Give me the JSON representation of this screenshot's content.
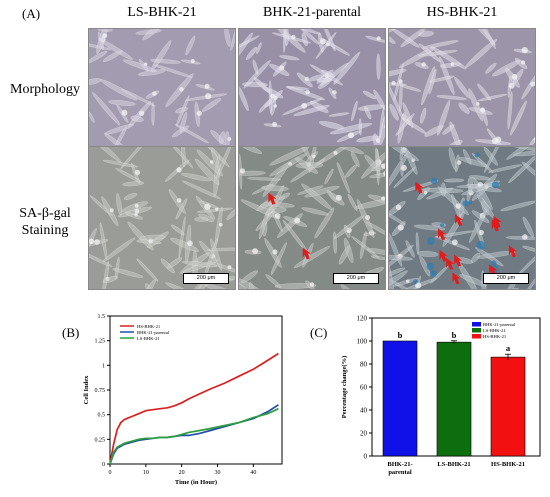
{
  "panel_a": {
    "letter": "(A)",
    "columns": [
      "LS-BHK-21",
      "BHK-21-parental",
      "HS-BHK-21"
    ],
    "rows": [
      {
        "label_lines": [
          "Morphology"
        ]
      },
      {
        "label_lines": [
          "SA-β-gal",
          "Staining"
        ]
      }
    ],
    "scale_bar_label": "200 μm"
  },
  "panel_b": {
    "letter": "(B)"
  },
  "panel_c": {
    "letter": "(C)"
  },
  "chart_data": [
    {
      "type": "line",
      "xlabel": "Time (in Hour)",
      "ylabel": "Cell Index",
      "xlim": [
        0,
        48
      ],
      "ylim": [
        0,
        1.5
      ],
      "xticks": [
        0,
        10,
        20,
        30,
        40
      ],
      "yticks": [
        0,
        0.25,
        0.5,
        0.75,
        1,
        1.25,
        1.5
      ],
      "legend_position": "top-left",
      "series": [
        {
          "name": "HS-BHK-21",
          "color": "#d9201f",
          "x": [
            0,
            1,
            2,
            3,
            4,
            6,
            8,
            10,
            12,
            14,
            16,
            18,
            20,
            22,
            25,
            28,
            32,
            36,
            40,
            44,
            47
          ],
          "y": [
            0,
            0.2,
            0.35,
            0.42,
            0.45,
            0.48,
            0.51,
            0.54,
            0.55,
            0.56,
            0.57,
            0.59,
            0.62,
            0.66,
            0.71,
            0.76,
            0.82,
            0.89,
            0.96,
            1.05,
            1.12
          ]
        },
        {
          "name": "BHK-21-parental",
          "color": "#1f4fa8",
          "x": [
            0,
            1,
            2,
            3,
            4,
            6,
            8,
            10,
            12,
            14,
            16,
            18,
            20,
            22,
            25,
            28,
            32,
            36,
            40,
            44,
            47
          ],
          "y": [
            0,
            0.1,
            0.16,
            0.18,
            0.2,
            0.22,
            0.24,
            0.25,
            0.26,
            0.27,
            0.27,
            0.28,
            0.29,
            0.29,
            0.31,
            0.34,
            0.38,
            0.42,
            0.46,
            0.53,
            0.6
          ]
        },
        {
          "name": "LS-BHK-21",
          "color": "#2e9e3e",
          "x": [
            0,
            1,
            2,
            3,
            4,
            6,
            8,
            10,
            12,
            14,
            16,
            18,
            20,
            22,
            25,
            28,
            32,
            36,
            40,
            44,
            47
          ],
          "y": [
            0,
            0.12,
            0.17,
            0.19,
            0.21,
            0.23,
            0.25,
            0.26,
            0.26,
            0.27,
            0.27,
            0.28,
            0.3,
            0.32,
            0.34,
            0.36,
            0.39,
            0.42,
            0.47,
            0.51,
            0.56
          ]
        }
      ]
    },
    {
      "type": "bar",
      "ylabel": "Percentage change(%)",
      "ylim": [
        0,
        120
      ],
      "yticks": [
        0,
        20,
        40,
        60,
        80,
        100,
        120
      ],
      "legend_position": "top-right",
      "categories": [
        "BHK-21-parental",
        "LS-BHK-21",
        "HS-BHK-21"
      ],
      "category_labels": [
        [
          "BHK-21-",
          "parental"
        ],
        [
          "LS-BHK-21"
        ],
        [
          "HS-BHK-21"
        ]
      ],
      "legend": [
        "BHK-21-parental",
        "LS-BHK-21",
        "HS-BHK-21"
      ],
      "values": [
        100,
        99,
        86
      ],
      "errors": [
        0,
        1.2,
        2.5
      ],
      "colors": [
        "#1010e8",
        "#0c6e0c",
        "#f21010"
      ],
      "annotations": [
        "b",
        "b",
        "a"
      ]
    }
  ]
}
